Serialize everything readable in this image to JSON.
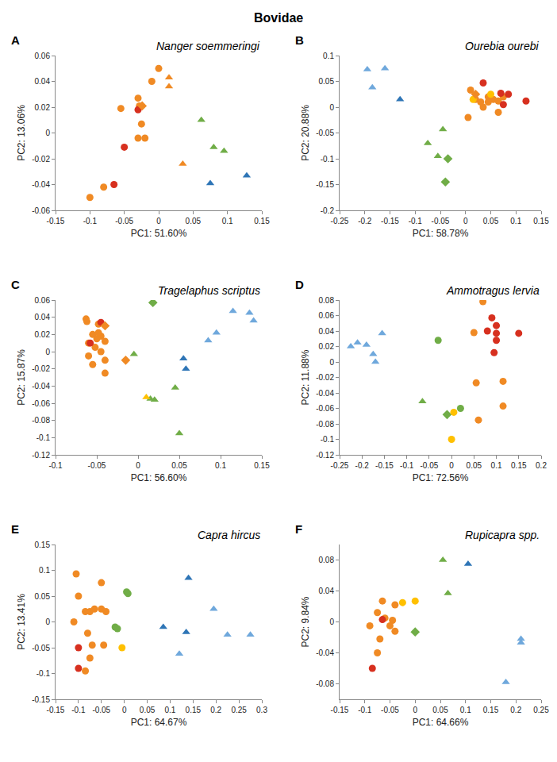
{
  "title": "Bovidae",
  "chart_data": [
    {
      "type": "scatter",
      "panel": "A",
      "title": "Nanger soemmeringi",
      "x_label": "PC1: 51.60%",
      "y_label": "PC2: 13.06%",
      "xlim": [
        -0.15,
        0.15
      ],
      "xticks": [
        -0.15,
        -0.1,
        -0.05,
        0,
        0.05,
        0.1,
        0.15
      ],
      "ylim": [
        -0.06,
        0.06
      ],
      "yticks": [
        -0.06,
        -0.04,
        -0.02,
        0,
        0.02,
        0.04,
        0.06
      ],
      "series": [
        {
          "color": "#f08a24",
          "marker": "circle",
          "x": [
            0.0,
            -0.01,
            -0.03,
            -0.055,
            -0.028,
            -0.025,
            -0.03,
            -0.02,
            -0.08,
            -0.1
          ],
          "y": [
            0.05,
            0.04,
            0.027,
            0.019,
            0.021,
            0.007,
            -0.004,
            -0.004,
            -0.042,
            -0.05
          ]
        },
        {
          "color": "#d7301f",
          "marker": "circle",
          "x": [
            -0.03,
            -0.05,
            -0.065
          ],
          "y": [
            0.018,
            -0.011,
            -0.04
          ]
        },
        {
          "color": "#f08a24",
          "marker": "diamond",
          "x": [
            -0.024
          ],
          "y": [
            0.021
          ]
        },
        {
          "color": "#f08a24",
          "marker": "triangle",
          "x": [
            0.015,
            0.015,
            0.035
          ],
          "y": [
            0.043,
            0.036,
            -0.024
          ]
        },
        {
          "color": "#70ad47",
          "marker": "triangle",
          "x": [
            0.062,
            0.08,
            0.095
          ],
          "y": [
            0.01,
            -0.011,
            -0.014
          ]
        },
        {
          "color": "#2e75b6",
          "marker": "triangle",
          "x": [
            0.075,
            0.128
          ],
          "y": [
            -0.039,
            -0.033
          ]
        }
      ]
    },
    {
      "type": "scatter",
      "panel": "B",
      "title": "Ourebia ourebi",
      "x_label": "PC1: 58.78%",
      "y_label": "PC2: 20.88%",
      "xlim": [
        -0.25,
        0.15
      ],
      "xticks": [
        -0.25,
        -0.2,
        -0.15,
        -0.1,
        -0.05,
        0,
        0.05,
        0.1,
        0.15
      ],
      "ylim": [
        -0.2,
        0.1
      ],
      "yticks": [
        -0.2,
        -0.15,
        -0.1,
        -0.05,
        0,
        0.05,
        0.1
      ],
      "series": [
        {
          "color": "#6fa8dc",
          "marker": "triangle",
          "x": [
            -0.195,
            -0.185,
            -0.16
          ],
          "y": [
            0.073,
            0.038,
            0.075
          ]
        },
        {
          "color": "#2e75b6",
          "marker": "triangle",
          "x": [
            -0.13
          ],
          "y": [
            0.015
          ]
        },
        {
          "color": "#70ad47",
          "marker": "triangle",
          "x": [
            -0.075,
            -0.055,
            -0.045
          ],
          "y": [
            -0.07,
            -0.095,
            -0.043
          ]
        },
        {
          "color": "#70ad47",
          "marker": "diamond",
          "x": [
            -0.035,
            -0.04
          ],
          "y": [
            -0.1,
            -0.145
          ]
        },
        {
          "color": "#f08a24",
          "marker": "circle",
          "x": [
            0.01,
            0.005,
            0.02,
            0.035,
            0.045,
            0.055,
            0.065,
            0.065,
            0.075,
            0.045,
            0.03
          ],
          "y": [
            0.033,
            -0.02,
            0.015,
            0.0,
            0.02,
            0.015,
            0.012,
            -0.01,
            0.02,
            0.01,
            0.01
          ]
        },
        {
          "color": "#d7301f",
          "marker": "circle",
          "x": [
            0.035,
            0.07,
            0.085,
            0.12,
            0.075
          ],
          "y": [
            0.047,
            0.027,
            0.025,
            0.012,
            0.005
          ]
        },
        {
          "color": "#ffc000",
          "marker": "circle",
          "x": [
            0.015,
            0.05
          ],
          "y": [
            0.015,
            0.025
          ]
        },
        {
          "color": "#f08a24",
          "marker": "diamond",
          "x": [
            0.02
          ],
          "y": [
            0.025
          ]
        }
      ]
    },
    {
      "type": "scatter",
      "panel": "C",
      "title": "Tragelaphus scriptus",
      "x_label": "PC1: 56.60%",
      "y_label": "PC2: 15.87%",
      "xlim": [
        -0.1,
        0.15
      ],
      "xticks": [
        -0.1,
        -0.05,
        0,
        0.05,
        0.1,
        0.15
      ],
      "ylim": [
        -0.12,
        0.06
      ],
      "yticks": [
        -0.12,
        -0.1,
        -0.08,
        -0.06,
        -0.04,
        -0.02,
        0,
        0.02,
        0.04,
        0.06
      ],
      "series": [
        {
          "color": "#f08a24",
          "marker": "circle",
          "x": [
            -0.063,
            -0.062,
            -0.048,
            -0.055,
            -0.045,
            -0.05,
            -0.04,
            -0.06,
            -0.052,
            -0.045,
            -0.06,
            -0.04,
            -0.055,
            -0.04,
            -0.048
          ],
          "y": [
            0.038,
            0.035,
            0.032,
            0.02,
            0.018,
            0.015,
            0.012,
            0.01,
            0.005,
            0.0,
            -0.005,
            -0.01,
            -0.015,
            -0.025,
            0.022
          ]
        },
        {
          "color": "#d7301f",
          "marker": "circle",
          "x": [
            -0.045,
            -0.058
          ],
          "y": [
            0.034,
            0.01
          ]
        },
        {
          "color": "#f08a24",
          "marker": "diamond",
          "x": [
            -0.04,
            -0.015
          ],
          "y": [
            0.03,
            -0.01
          ]
        },
        {
          "color": "#70ad47",
          "marker": "triangle",
          "x": [
            -0.005,
            0.015,
            0.02,
            0.045,
            0.05
          ],
          "y": [
            -0.003,
            -0.055,
            -0.056,
            -0.042,
            -0.095
          ]
        },
        {
          "color": "#70ad47",
          "marker": "diamond",
          "x": [
            0.018
          ],
          "y": [
            0.057
          ]
        },
        {
          "color": "#ffc000",
          "marker": "triangle",
          "x": [
            0.01
          ],
          "y": [
            -0.053
          ]
        },
        {
          "color": "#2e75b6",
          "marker": "triangle",
          "x": [
            0.055,
            0.058
          ],
          "y": [
            -0.008,
            -0.02
          ]
        },
        {
          "color": "#6fa8dc",
          "marker": "triangle",
          "x": [
            0.085,
            0.095,
            0.115,
            0.135,
            0.14
          ],
          "y": [
            0.013,
            0.022,
            0.047,
            0.045,
            0.036
          ]
        }
      ]
    },
    {
      "type": "scatter",
      "panel": "D",
      "title": "Ammotragus lervia",
      "x_label": "PC1: 72.56%",
      "y_label": "PC2: 11.88%",
      "xlim": [
        -0.25,
        0.2
      ],
      "xticks": [
        -0.25,
        -0.2,
        -0.15,
        -0.1,
        -0.05,
        0,
        0.05,
        0.1,
        0.15,
        0.2
      ],
      "ylim": [
        -0.12,
        0.08
      ],
      "yticks": [
        -0.12,
        -0.1,
        -0.08,
        -0.06,
        -0.04,
        -0.02,
        0,
        0.02,
        0.04,
        0.06,
        0.08
      ],
      "series": [
        {
          "color": "#6fa8dc",
          "marker": "triangle",
          "x": [
            -0.225,
            -0.21,
            -0.19,
            -0.175,
            -0.17,
            -0.155
          ],
          "y": [
            0.02,
            0.025,
            0.022,
            0.01,
            0.0,
            0.037
          ]
        },
        {
          "color": "#70ad47",
          "marker": "circle",
          "x": [
            -0.03,
            0.02
          ],
          "y": [
            0.028,
            -0.06
          ]
        },
        {
          "color": "#70ad47",
          "marker": "triangle",
          "x": [
            -0.065
          ],
          "y": [
            -0.051
          ]
        },
        {
          "color": "#70ad47",
          "marker": "diamond",
          "x": [
            -0.01
          ],
          "y": [
            -0.068
          ]
        },
        {
          "color": "#ffc000",
          "marker": "circle",
          "x": [
            0.005,
            0.0
          ],
          "y": [
            -0.065,
            -0.1
          ]
        },
        {
          "color": "#f08a24",
          "marker": "circle",
          "x": [
            0.07,
            0.05,
            0.055,
            0.06,
            0.115,
            0.115
          ],
          "y": [
            0.078,
            0.038,
            -0.027,
            -0.075,
            -0.025,
            -0.057
          ]
        },
        {
          "color": "#d7301f",
          "marker": "circle",
          "x": [
            0.09,
            0.1,
            0.08,
            0.1,
            0.15,
            0.1,
            0.095
          ],
          "y": [
            0.057,
            0.047,
            0.04,
            0.037,
            0.037,
            0.028,
            0.012
          ]
        }
      ]
    },
    {
      "type": "scatter",
      "panel": "E",
      "title": "Capra hircus",
      "x_label": "PC1: 64.67%",
      "y_label": "PC2: 13.41%",
      "xlim": [
        -0.15,
        0.3
      ],
      "xticks": [
        -0.15,
        -0.1,
        -0.05,
        0,
        0.05,
        0.1,
        0.15,
        0.2,
        0.25,
        0.3
      ],
      "ylim": [
        -0.15,
        0.15
      ],
      "yticks": [
        -0.15,
        -0.1,
        -0.05,
        0,
        0.05,
        0.1,
        0.15
      ],
      "series": [
        {
          "color": "#f08a24",
          "marker": "circle",
          "x": [
            -0.105,
            -0.1,
            -0.11,
            -0.085,
            -0.075,
            -0.065,
            -0.05,
            -0.05,
            -0.04,
            -0.08,
            -0.07,
            -0.075,
            -0.085,
            -0.045
          ],
          "y": [
            0.093,
            0.05,
            0.0,
            0.02,
            0.02,
            0.025,
            0.076,
            0.025,
            0.02,
            -0.022,
            -0.045,
            -0.07,
            -0.095,
            -0.045
          ]
        },
        {
          "color": "#d7301f",
          "marker": "circle",
          "x": [
            -0.1,
            -0.1
          ],
          "y": [
            -0.05,
            -0.09
          ]
        },
        {
          "color": "#70ad47",
          "marker": "circle",
          "x": [
            0.005,
            0.008,
            -0.02,
            -0.015
          ],
          "y": [
            0.058,
            0.055,
            -0.01,
            -0.013
          ]
        },
        {
          "color": "#ffc000",
          "marker": "circle",
          "x": [
            -0.005
          ],
          "y": [
            -0.05
          ]
        },
        {
          "color": "#2e75b6",
          "marker": "triangle",
          "x": [
            0.085,
            0.135,
            0.14
          ],
          "y": [
            -0.01,
            -0.02,
            0.085
          ]
        },
        {
          "color": "#6fa8dc",
          "marker": "triangle",
          "x": [
            0.12,
            0.195,
            0.225,
            0.275
          ],
          "y": [
            -0.062,
            0.025,
            -0.025,
            -0.025
          ]
        }
      ]
    },
    {
      "type": "scatter",
      "panel": "F",
      "title": "Rupicapra spp.",
      "x_label": "PC1: 64.66%",
      "y_label": "PC2: 9.84%",
      "xlim": [
        -0.15,
        0.25
      ],
      "xticks": [
        -0.15,
        -0.1,
        -0.05,
        0,
        0.05,
        0.1,
        0.15,
        0.2,
        0.25
      ],
      "ylim": [
        -0.1,
        0.1
      ],
      "yticks": [
        -0.08,
        -0.04,
        0,
        0.04,
        0.08
      ],
      "series": [
        {
          "color": "#f08a24",
          "marker": "circle",
          "x": [
            -0.065,
            -0.04,
            -0.075,
            -0.06,
            -0.09,
            -0.045,
            -0.05,
            -0.07,
            -0.04,
            -0.075
          ],
          "y": [
            0.027,
            0.022,
            0.012,
            0.005,
            -0.005,
            0.002,
            -0.005,
            -0.022,
            -0.012,
            -0.04
          ]
        },
        {
          "color": "#d7301f",
          "marker": "circle",
          "x": [
            -0.065,
            -0.085
          ],
          "y": [
            0.003,
            -0.06
          ]
        },
        {
          "color": "#ffc000",
          "marker": "circle",
          "x": [
            -0.025,
            0.0
          ],
          "y": [
            0.025,
            0.027
          ]
        },
        {
          "color": "#70ad47",
          "marker": "diamond",
          "x": [
            0.0
          ],
          "y": [
            -0.013
          ]
        },
        {
          "color": "#70ad47",
          "marker": "triangle",
          "x": [
            0.055,
            0.065
          ],
          "y": [
            0.08,
            0.037
          ]
        },
        {
          "color": "#2e75b6",
          "marker": "triangle",
          "x": [
            0.105
          ],
          "y": [
            0.075
          ]
        },
        {
          "color": "#6fa8dc",
          "marker": "triangle",
          "x": [
            0.21,
            0.21,
            0.18
          ],
          "y": [
            -0.022,
            -0.027,
            -0.078
          ]
        }
      ]
    }
  ]
}
